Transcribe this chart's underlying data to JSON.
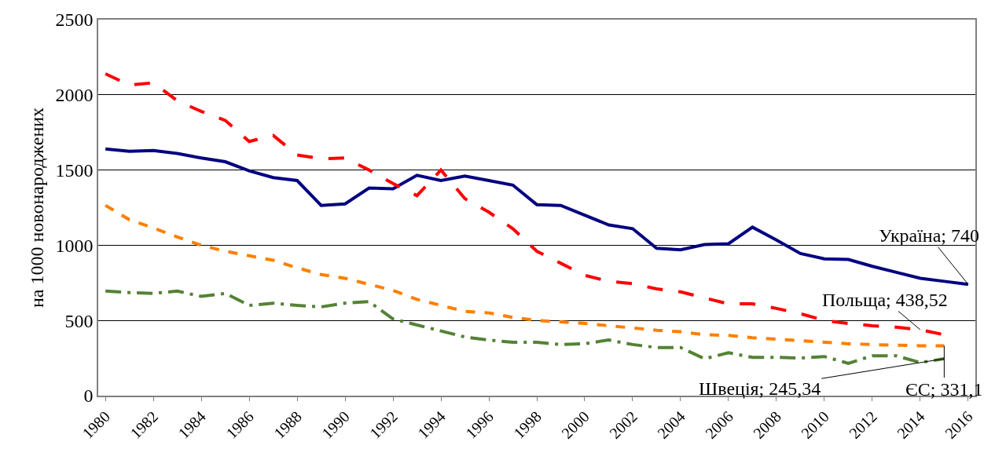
{
  "chart_data": {
    "type": "line",
    "ylabel": "на 1000 новонароджених",
    "x": [
      1980,
      1981,
      1982,
      1983,
      1984,
      1985,
      1986,
      1987,
      1988,
      1989,
      1990,
      1991,
      1992,
      1993,
      1994,
      1995,
      1996,
      1997,
      1998,
      1999,
      2000,
      2001,
      2002,
      2003,
      2004,
      2005,
      2006,
      2007,
      2008,
      2009,
      2010,
      2011,
      2012,
      2013,
      2014,
      2015,
      2016
    ],
    "series": [
      {
        "color": "#000080",
        "line_style": "solid",
        "values": [
          1640,
          1625,
          1630,
          1610,
          1580,
          1555,
          1495,
          1450,
          1430,
          1265,
          1275,
          1380,
          1375,
          1465,
          1430,
          1460,
          1430,
          1400,
          1270,
          1265,
          1200,
          1135,
          1110,
          980,
          970,
          1005,
          1010,
          1120,
          1035,
          945,
          910,
          905,
          860,
          820,
          780,
          760,
          740
        ]
      },
      {
        "color": "#ff0000",
        "line_style": "dashed",
        "values": [
          2140,
          2065,
          2080,
          1960,
          1890,
          1830,
          1690,
          1730,
          1600,
          1575,
          1580,
          1500,
          1410,
          1330,
          1500,
          1310,
          1220,
          1110,
          960,
          880,
          800,
          760,
          745,
          710,
          690,
          650,
          610,
          610,
          580,
          545,
          500,
          480,
          465,
          455,
          438.52,
          405,
          null
        ]
      },
      {
        "color": "#ff7f00",
        "line_style": "dotted",
        "values": [
          1265,
          1170,
          1115,
          1055,
          1000,
          960,
          930,
          900,
          850,
          805,
          780,
          740,
          700,
          640,
          600,
          560,
          550,
          520,
          500,
          490,
          480,
          465,
          450,
          435,
          425,
          405,
          400,
          385,
          375,
          365,
          355,
          345,
          340,
          335,
          332,
          331.1,
          null
        ]
      },
      {
        "color": "#548235",
        "line_style": "dashdot",
        "values": [
          695,
          685,
          680,
          695,
          660,
          680,
          600,
          615,
          600,
          590,
          615,
          625,
          510,
          470,
          430,
          390,
          370,
          355,
          355,
          340,
          345,
          370,
          340,
          320,
          320,
          245,
          285,
          255,
          255,
          250,
          260,
          215,
          265,
          265,
          220,
          245.34,
          null
        ]
      }
    ],
    "annotations": [
      {
        "text": "Україна; 740",
        "x": 2016,
        "y": 740
      },
      {
        "text": "Польща; 438,52",
        "x": 2014,
        "y": 438.52
      },
      {
        "text": "Швеція; 245,34",
        "x": 2015,
        "y": 245.34
      },
      {
        "text": "ЄС; 331,1",
        "x": 2015,
        "y": 331.1
      }
    ],
    "xlim": [
      1979.7,
      2016.3
    ],
    "xticks": [
      1980,
      1982,
      1984,
      1986,
      1988,
      1990,
      1992,
      1994,
      1996,
      1998,
      2000,
      2002,
      2004,
      2006,
      2008,
      2010,
      2012,
      2014,
      2016
    ],
    "ylim": [
      0,
      2500
    ],
    "yticks": [
      0,
      500,
      1000,
      1500,
      2000,
      2500
    ],
    "grid": "y"
  }
}
